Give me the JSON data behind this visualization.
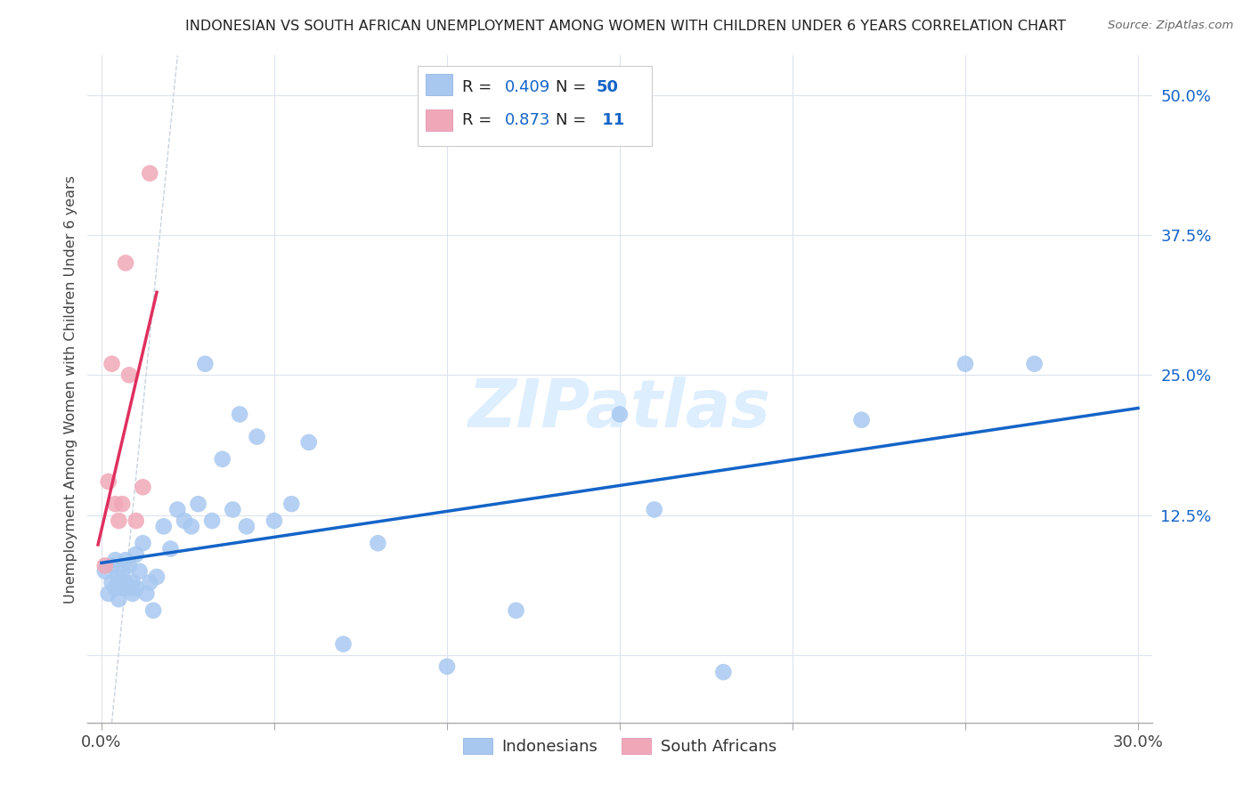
{
  "title": "INDONESIAN VS SOUTH AFRICAN UNEMPLOYMENT AMONG WOMEN WITH CHILDREN UNDER 6 YEARS CORRELATION CHART",
  "source": "Source: ZipAtlas.com",
  "ylabel": "Unemployment Among Women with Children Under 6 years",
  "blue_color": "#a8c8f0",
  "pink_color": "#f0a8b8",
  "blue_line_color": "#1464c8",
  "pink_line_color": "#e03060",
  "grid_color": "#dde4ee",
  "watermark_color": "#ddeeff",
  "indo_x": [
    0.001,
    0.002,
    0.003,
    0.003,
    0.004,
    0.004,
    0.005,
    0.005,
    0.006,
    0.006,
    0.007,
    0.007,
    0.008,
    0.008,
    0.009,
    0.009,
    0.01,
    0.01,
    0.011,
    0.012,
    0.013,
    0.014,
    0.015,
    0.016,
    0.018,
    0.02,
    0.022,
    0.024,
    0.026,
    0.028,
    0.03,
    0.032,
    0.035,
    0.038,
    0.04,
    0.042,
    0.045,
    0.05,
    0.055,
    0.06,
    0.07,
    0.08,
    0.1,
    0.12,
    0.15,
    0.16,
    0.18,
    0.22,
    0.25,
    0.27
  ],
  "indo_y": [
    0.075,
    0.055,
    0.065,
    0.08,
    0.06,
    0.085,
    0.05,
    0.07,
    0.075,
    0.06,
    0.085,
    0.065,
    0.06,
    0.08,
    0.055,
    0.065,
    0.06,
    0.09,
    0.075,
    0.1,
    0.055,
    0.065,
    0.04,
    0.07,
    0.115,
    0.095,
    0.13,
    0.12,
    0.115,
    0.135,
    0.26,
    0.12,
    0.175,
    0.13,
    0.215,
    0.115,
    0.195,
    0.12,
    0.135,
    0.19,
    0.01,
    0.1,
    -0.01,
    0.04,
    0.215,
    0.13,
    -0.015,
    0.21,
    0.26,
    0.26
  ],
  "sa_x": [
    0.001,
    0.002,
    0.003,
    0.004,
    0.005,
    0.006,
    0.007,
    0.008,
    0.01,
    0.012,
    0.014
  ],
  "sa_y": [
    0.08,
    0.155,
    0.26,
    0.135,
    0.12,
    0.135,
    0.35,
    0.25,
    0.12,
    0.15,
    0.43
  ],
  "blue_line_x": [
    0.0,
    0.3
  ],
  "blue_line_y_intercept": 0.075,
  "blue_line_slope": 0.55,
  "pink_line_x_start": -0.002,
  "pink_line_x_end": 0.017,
  "xlim": [
    -0.004,
    0.304
  ],
  "ylim": [
    -0.06,
    0.535
  ],
  "yticks": [
    0.0,
    0.125,
    0.25,
    0.375,
    0.5
  ],
  "xticks": [
    0.0,
    0.05,
    0.1,
    0.15,
    0.2,
    0.25,
    0.3
  ]
}
